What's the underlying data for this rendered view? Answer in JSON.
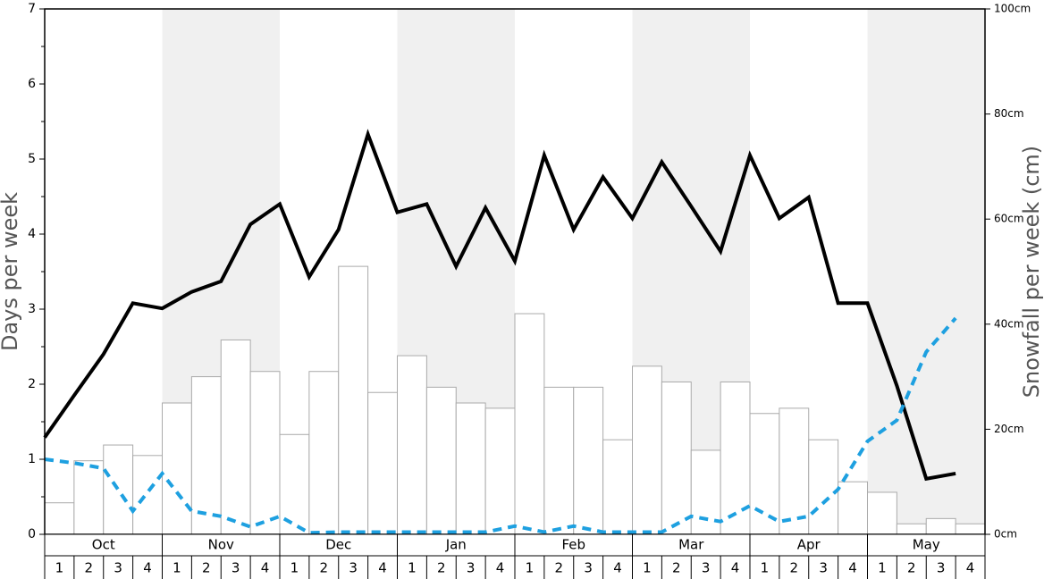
{
  "chart_data": {
    "type": "bar",
    "y_label": "Days per week",
    "y2_label": "Snowfall per week (cm)",
    "months": [
      "Oct",
      "Nov",
      "Dec",
      "Jan",
      "Feb",
      "Mar",
      "Apr",
      "May"
    ],
    "categories": [
      "1",
      "2",
      "3",
      "4",
      "1",
      "2",
      "3",
      "4",
      "1",
      "2",
      "3",
      "4",
      "1",
      "2",
      "3",
      "4",
      "1",
      "2",
      "3",
      "4",
      "1",
      "2",
      "3",
      "4",
      "1",
      "2",
      "3",
      "4",
      "1",
      "2",
      "3",
      "4"
    ],
    "series": [
      {
        "type": "bar",
        "axis": "y2",
        "color": "#ffffff",
        "values": [
          6,
          14,
          17,
          15,
          25,
          30,
          37,
          31,
          19,
          31,
          51,
          27,
          34,
          28,
          25,
          24,
          42,
          28,
          28,
          18,
          32,
          29,
          16,
          29,
          23,
          24,
          18,
          10,
          8,
          2,
          3,
          2
        ]
      },
      {
        "type": "line",
        "color": "#000000",
        "values": [
          1.29,
          1.85,
          2.4,
          3.08,
          3.01,
          3.23,
          3.37,
          4.13,
          4.4,
          3.43,
          4.06,
          5.33,
          4.29,
          4.4,
          3.57,
          4.35,
          3.64,
          5.05,
          4.06,
          4.76,
          4.21,
          4.96,
          4.37,
          3.77,
          5.05,
          4.21,
          4.49,
          3.08,
          3.08,
          1.98,
          0.74,
          0.81
        ]
      },
      {
        "type": "line",
        "dashed": true,
        "color": "#1ea0e0",
        "values": [
          1.0,
          0.95,
          0.88,
          0.31,
          0.81,
          0.31,
          0.24,
          0.1,
          0.24,
          0.02,
          0.03,
          0.03,
          0.03,
          0.03,
          0.03,
          0.03,
          0.11,
          0.03,
          0.11,
          0.03,
          0.03,
          0.03,
          0.24,
          0.17,
          0.38,
          0.17,
          0.24,
          0.6,
          1.24,
          1.52,
          2.43,
          2.88
        ]
      }
    ],
    "ylim": [
      0,
      7
    ],
    "yticks": [
      0,
      1,
      2,
      3,
      4,
      5,
      6,
      7
    ],
    "y2lim": [
      0,
      100
    ],
    "y2ticks": [
      {
        "value": 0,
        "label": "0cm"
      },
      {
        "value": 20,
        "label": "20cm"
      },
      {
        "value": 40,
        "label": "40cm"
      },
      {
        "value": 60,
        "label": "60cm"
      },
      {
        "value": 80,
        "label": "80cm"
      },
      {
        "value": 100,
        "label": "100cm"
      }
    ]
  }
}
